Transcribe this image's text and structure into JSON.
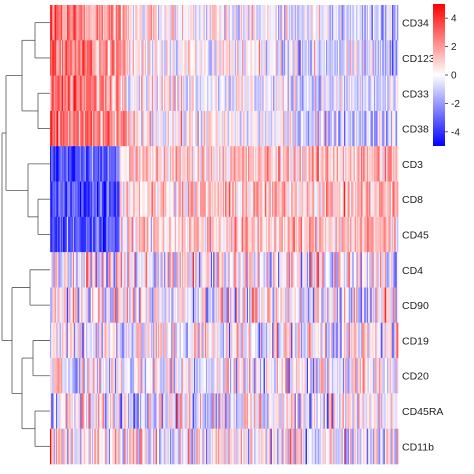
{
  "chart_data": {
    "type": "heatmap",
    "rows": [
      {
        "label": "CD34",
        "cluster": 1,
        "profile": "high-left"
      },
      {
        "label": "CD123",
        "cluster": 1,
        "profile": "high-left"
      },
      {
        "label": "CD33",
        "cluster": 1,
        "profile": "high-left"
      },
      {
        "label": "CD38",
        "cluster": 1,
        "profile": "high-left"
      },
      {
        "label": "CD3",
        "cluster": 2,
        "profile": "low-left"
      },
      {
        "label": "CD8",
        "cluster": 2,
        "profile": "low-left"
      },
      {
        "label": "CD45",
        "cluster": 2,
        "profile": "low-left"
      },
      {
        "label": "CD4",
        "cluster": 3,
        "profile": "mixed"
      },
      {
        "label": "CD90",
        "cluster": 3,
        "profile": "mixed"
      },
      {
        "label": "CD19",
        "cluster": 3,
        "profile": "mixed"
      },
      {
        "label": "CD20",
        "cluster": 3,
        "profile": "mixed"
      },
      {
        "label": "CD45RA",
        "cluster": 3,
        "profile": "mixed"
      },
      {
        "label": "CD11b",
        "cluster": 3,
        "profile": "mixed"
      }
    ],
    "color_scale": {
      "min": -5,
      "max": 5,
      "low_color": "#0000ff",
      "mid_color": "#ffffff",
      "high_color": "#ff0000",
      "ticks": [
        4,
        2,
        0,
        -2,
        -4
      ]
    },
    "dendrogram_side": "left",
    "legend_placement": "top-right"
  }
}
